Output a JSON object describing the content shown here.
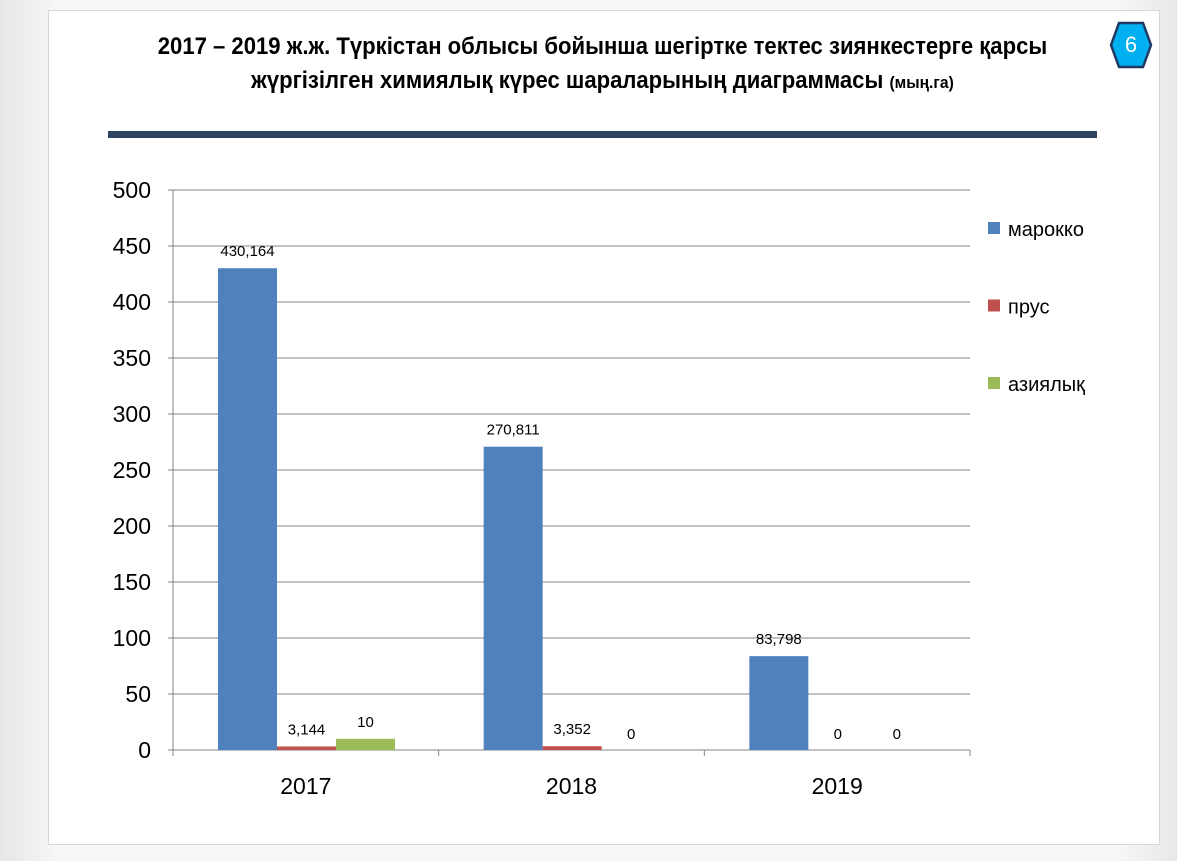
{
  "slide": {
    "title_main": "2017 – 2019 ж.ж. Түркістан облысы бойынша шегіртке тектес зиянкестерге қарсы жүргізілген химиялық күрес шараларының диаграммасы",
    "title_unit": "(мың.га)",
    "page_number": "6",
    "badge_color": "#00b0f0"
  },
  "chart_data": {
    "type": "bar",
    "title": "2017 – 2019 ж.ж. Түркістан облысы бойынша шегіртке тектес зиянкестерге қарсы жүргізілген химиялық күрес шараларының диаграммасы (мың.га)",
    "categories": [
      "2017",
      "2018",
      "2019"
    ],
    "series": [
      {
        "name": "марокко",
        "color": "#4f81bd",
        "values": [
          430.164,
          270.811,
          83.798
        ],
        "labels": [
          "430,164",
          "270,811",
          "83,798"
        ]
      },
      {
        "name": "прус",
        "color": "#c0504d",
        "values": [
          3.144,
          3.352,
          0
        ],
        "labels": [
          "3,144",
          "3,352",
          "0"
        ]
      },
      {
        "name": "азиялық",
        "color": "#9bbb59",
        "values": [
          10,
          0,
          0
        ],
        "labels": [
          "10",
          "0",
          "0"
        ]
      }
    ],
    "xlabel": "",
    "ylabel": "",
    "ylim": [
      0,
      500
    ],
    "yticks": [
      "0",
      "50",
      "100",
      "150",
      "200",
      "250",
      "300",
      "350",
      "400",
      "450",
      "500"
    ],
    "grid": true,
    "legend_position": "right"
  }
}
